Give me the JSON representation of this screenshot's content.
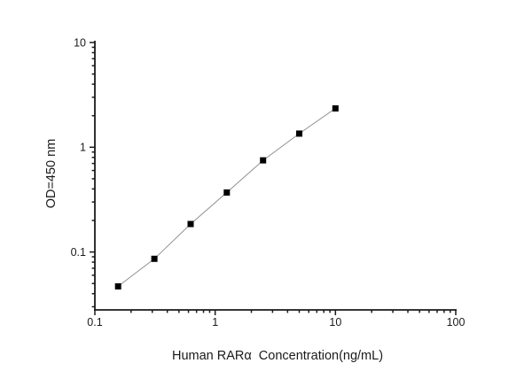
{
  "figure": {
    "background": "#ffffff"
  },
  "chart_data": {
    "type": "line",
    "title": "",
    "xlabel": "Human RARα  Concentration(ng/mL)",
    "ylabel": "OD=450 nm",
    "xscale": "log",
    "yscale": "log",
    "xlim": [
      0.1,
      100
    ],
    "ylim": [
      0.028,
      10
    ],
    "grid": false,
    "legend": false,
    "x_ticks": [
      {
        "value": 0.1,
        "label": "0.1"
      },
      {
        "value": 1,
        "label": "1"
      },
      {
        "value": 10,
        "label": "10"
      },
      {
        "value": 100,
        "label": "100"
      }
    ],
    "y_ticks": [
      {
        "value": 0.1,
        "label": "0.1"
      },
      {
        "value": 1,
        "label": "1"
      },
      {
        "value": 10,
        "label": "10"
      }
    ],
    "minor_ticks": "log-decades",
    "series": [
      {
        "marker": "filled-square",
        "marker_color": "#000000",
        "line_color": "#909090",
        "points": [
          {
            "x": 0.156,
            "y": 0.047
          },
          {
            "x": 0.3125,
            "y": 0.086
          },
          {
            "x": 0.625,
            "y": 0.185
          },
          {
            "x": 1.25,
            "y": 0.37
          },
          {
            "x": 2.5,
            "y": 0.75
          },
          {
            "x": 5,
            "y": 1.35
          },
          {
            "x": 10,
            "y": 2.35
          }
        ]
      }
    ],
    "axis_color": "#1a1a1a",
    "text_color": "#1a1a1a"
  }
}
